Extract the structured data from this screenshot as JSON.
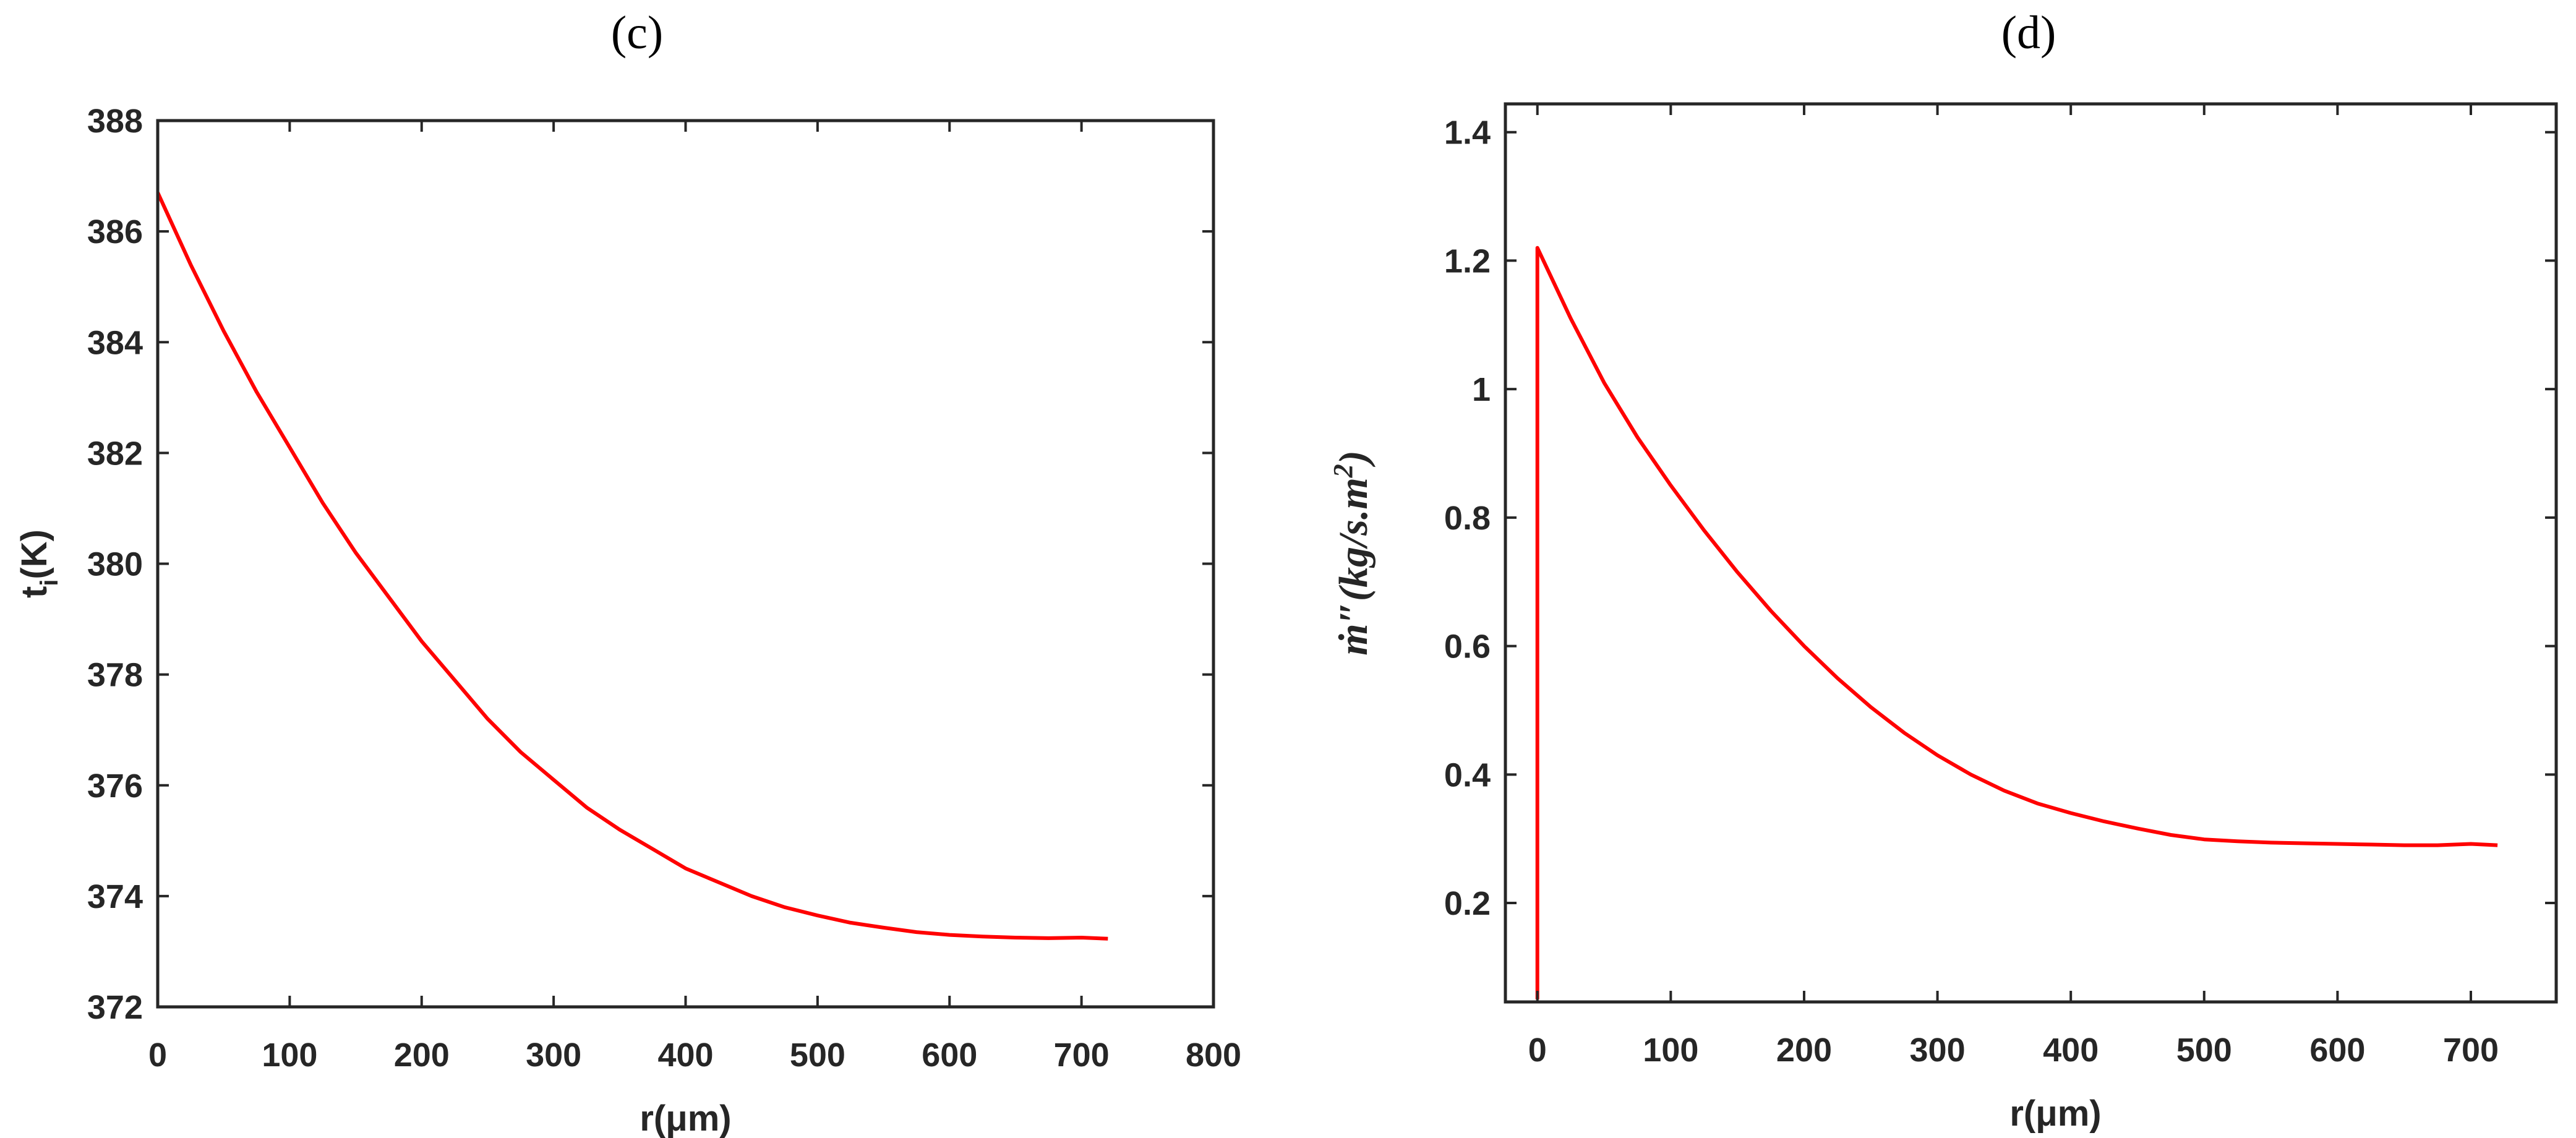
{
  "figure": {
    "panels": [
      {
        "id": "c",
        "title": "(c)"
      },
      {
        "id": "d",
        "title": "(d)"
      }
    ]
  },
  "colors": {
    "line": "#ff0000",
    "axis": "#262626",
    "background": "#ffffff"
  },
  "chart_data": [
    {
      "type": "line",
      "title": "(c)",
      "xlabel": "r(μm)",
      "ylabel": "t_i(K)",
      "xlim": [
        0,
        800
      ],
      "ylim": [
        372,
        388
      ],
      "xticks": [
        0,
        100,
        200,
        300,
        400,
        500,
        600,
        700,
        800
      ],
      "yticks": [
        372,
        374,
        376,
        378,
        380,
        382,
        384,
        386,
        388
      ],
      "grid": false,
      "legend": null,
      "series": [
        {
          "name": "t_i",
          "color": "#ff0000",
          "x": [
            0,
            25,
            50,
            75,
            100,
            125,
            150,
            175,
            200,
            225,
            250,
            275,
            300,
            325,
            350,
            375,
            400,
            425,
            450,
            475,
            500,
            525,
            550,
            575,
            600,
            625,
            650,
            675,
            700,
            720
          ],
          "y": [
            386.7,
            385.4,
            384.2,
            383.1,
            382.1,
            381.1,
            380.2,
            379.4,
            378.6,
            377.9,
            377.2,
            376.6,
            376.1,
            375.6,
            375.2,
            374.85,
            374.5,
            374.25,
            374.0,
            373.8,
            373.65,
            373.52,
            373.43,
            373.35,
            373.3,
            373.27,
            373.25,
            373.24,
            373.25,
            373.23
          ]
        }
      ]
    },
    {
      "type": "line",
      "title": "(d)",
      "xlabel": "r(μm)",
      "ylabel": "ṁ″(kg/s.m²)",
      "xlim": [
        -24,
        764
      ],
      "ylim": [
        0.046,
        1.444
      ],
      "xticks": [
        0,
        100,
        200,
        300,
        400,
        500,
        600,
        700
      ],
      "yticks": [
        0.2,
        0.4,
        0.6,
        0.8,
        1,
        1.2,
        1.4
      ],
      "ytick_labels": [
        "0.2",
        "0.4",
        "0.6",
        "0.8",
        "1",
        "1.2",
        "1.4"
      ],
      "grid": false,
      "legend": null,
      "series": [
        {
          "name": "m_dot_flux",
          "color": "#ff0000",
          "x": [
            0,
            0,
            25,
            50,
            75,
            100,
            125,
            150,
            175,
            200,
            225,
            250,
            275,
            300,
            325,
            350,
            375,
            400,
            425,
            450,
            475,
            500,
            525,
            550,
            575,
            600,
            625,
            650,
            675,
            700,
            720
          ],
          "y": [
            0.05,
            1.22,
            1.11,
            1.01,
            0.925,
            0.85,
            0.78,
            0.715,
            0.655,
            0.6,
            0.55,
            0.505,
            0.465,
            0.43,
            0.4,
            0.375,
            0.355,
            0.34,
            0.327,
            0.316,
            0.306,
            0.299,
            0.296,
            0.294,
            0.293,
            0.292,
            0.291,
            0.29,
            0.29,
            0.292,
            0.29
          ]
        }
      ]
    }
  ]
}
